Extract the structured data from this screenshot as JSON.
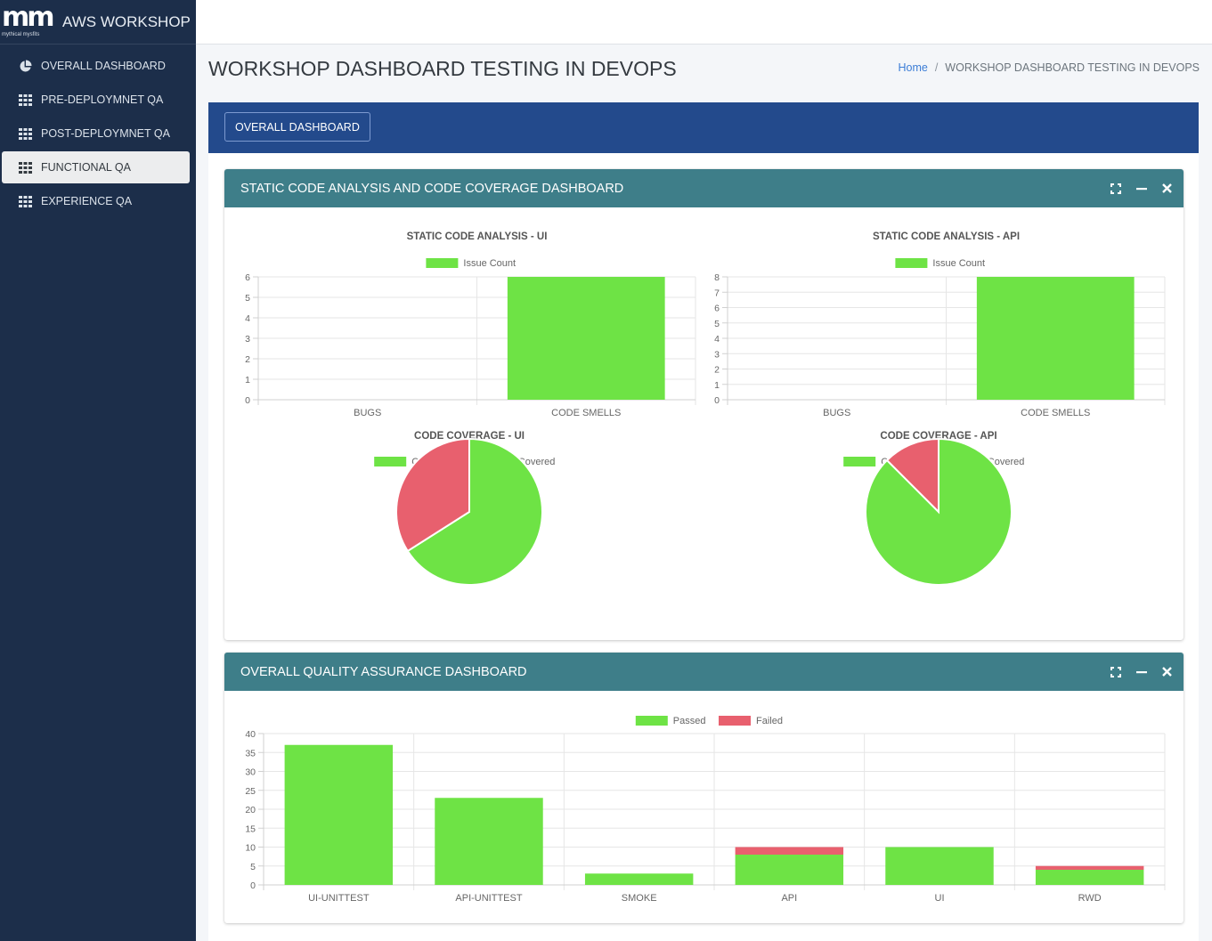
{
  "brand": {
    "logo_text": "mm",
    "logo_sub": "mythical mysfits",
    "title": "AWS WORKSHOP"
  },
  "sidebar": {
    "items": [
      {
        "label": "OVERALL DASHBOARD",
        "icon": "pie-chart-icon",
        "active": false
      },
      {
        "label": "PRE-DEPLOYMNET QA",
        "icon": "grid-icon",
        "active": false
      },
      {
        "label": "POST-DEPLOYMNET QA",
        "icon": "grid-icon",
        "active": false
      },
      {
        "label": "FUNCTIONAL QA",
        "icon": "grid-icon",
        "active": true
      },
      {
        "label": "EXPERIENCE QA",
        "icon": "grid-icon",
        "active": false
      }
    ]
  },
  "header": {
    "title": "WORKSHOP DASHBOARD TESTING IN DEVOPS"
  },
  "breadcrumb": {
    "home": "Home",
    "separator": "/",
    "current": "WORKSHOP DASHBOARD TESTING IN DEVOPS"
  },
  "card": {
    "button_label": "OVERALL DASHBOARD"
  },
  "panels": {
    "static": {
      "title": "STATIC CODE ANALYSIS AND CODE COVERAGE DASHBOARD"
    },
    "qa": {
      "title": "OVERALL QUALITY ASSURANCE DASHBOARD"
    }
  },
  "colors": {
    "green": "#6ee345",
    "red": "#e8606e",
    "panel_header": "#3e7e89",
    "card_top": "#234a8c",
    "sidebar": "#1c2e4a"
  },
  "chart_data": [
    {
      "type": "bar",
      "title": "STATIC CODE ANALYSIS - UI",
      "categories": [
        "BUGS",
        "CODE SMELLS"
      ],
      "series": [
        {
          "name": "Issue Count",
          "values": [
            0,
            6
          ]
        }
      ],
      "ylim": [
        0,
        6
      ],
      "yticks": [
        0,
        1,
        2,
        3,
        4,
        5,
        6
      ],
      "legend": "top"
    },
    {
      "type": "bar",
      "title": "STATIC CODE ANALYSIS - API",
      "categories": [
        "BUGS",
        "CODE SMELLS"
      ],
      "series": [
        {
          "name": "Issue Count",
          "values": [
            0,
            8
          ]
        }
      ],
      "ylim": [
        0,
        8
      ],
      "yticks": [
        0,
        1,
        2,
        3,
        4,
        5,
        6,
        7,
        8
      ],
      "legend": "top"
    },
    {
      "type": "pie",
      "title": "CODE COVERAGE - UI",
      "labels": [
        "Covered",
        "Not Covered"
      ],
      "values": [
        66,
        34
      ],
      "legend": "top"
    },
    {
      "type": "pie",
      "title": "CODE COVERAGE - API",
      "labels": [
        "Covered",
        "Not Covered"
      ],
      "values": [
        87.5,
        12.5
      ],
      "legend": "top"
    },
    {
      "type": "bar",
      "stacked": true,
      "title": "",
      "categories": [
        "UI-UNITTEST",
        "API-UNITTEST",
        "SMOKE",
        "API",
        "UI",
        "RWD"
      ],
      "series": [
        {
          "name": "Passed",
          "values": [
            37,
            23,
            3,
            8,
            10,
            4
          ]
        },
        {
          "name": "Failed",
          "values": [
            0,
            0,
            0,
            2,
            0,
            1
          ]
        }
      ],
      "ylim": [
        0,
        40
      ],
      "yticks": [
        0,
        5,
        10,
        15,
        20,
        25,
        30,
        35,
        40
      ],
      "legend": "top"
    }
  ]
}
